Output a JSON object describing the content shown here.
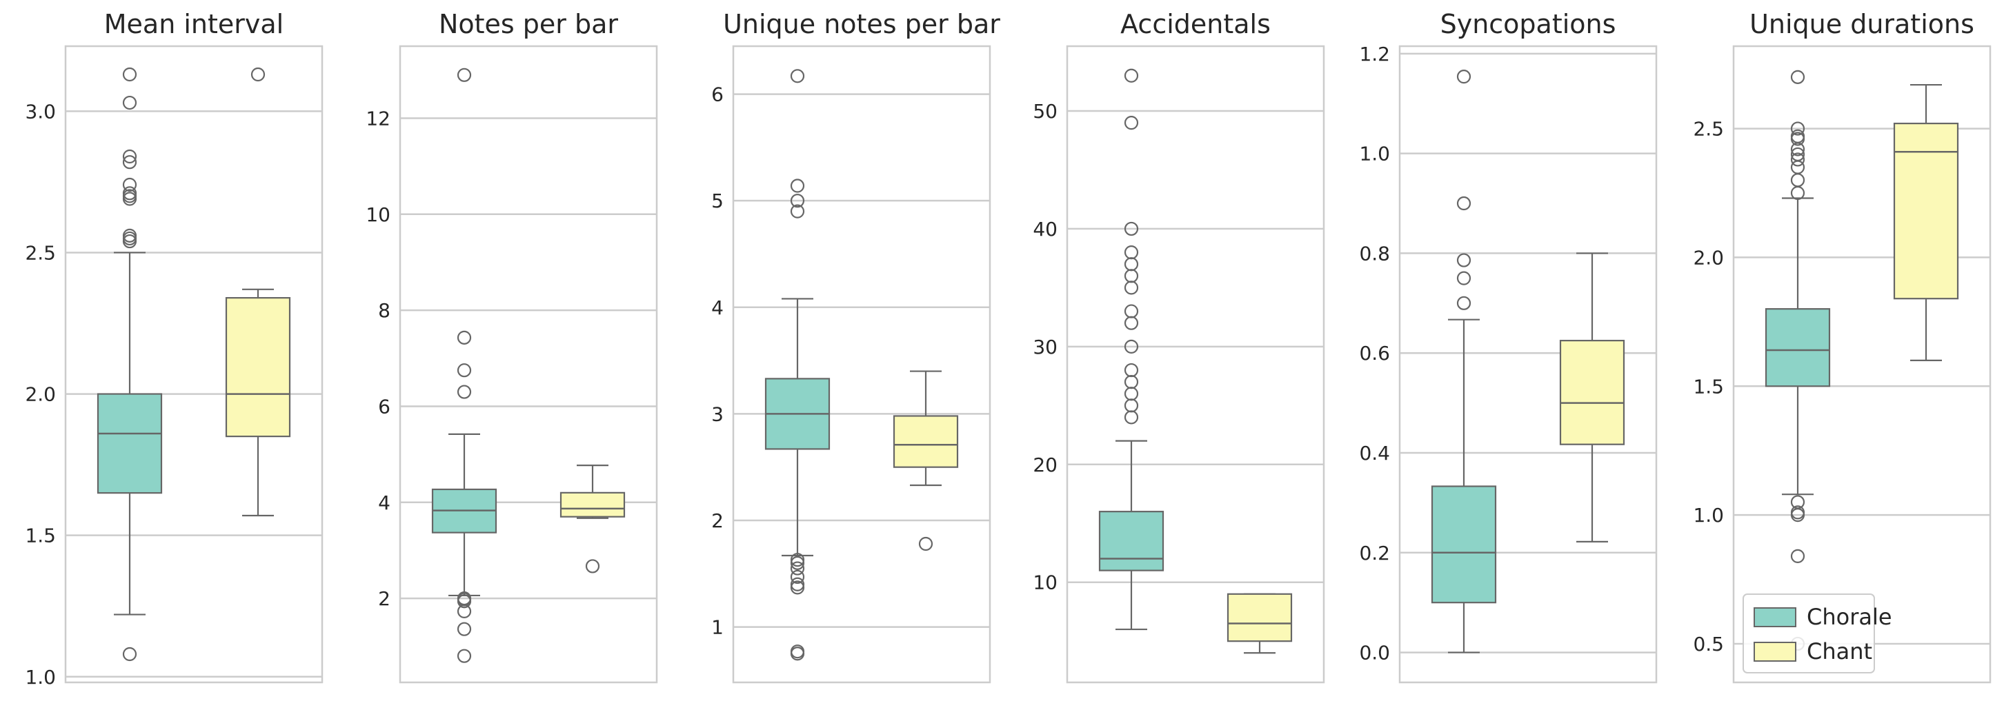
{
  "chart_data": [
    {
      "type": "box",
      "title": "Mean interval",
      "ylim": [
        0.98,
        3.23
      ],
      "yticks": [
        1.0,
        1.5,
        2.0,
        2.5,
        3.0
      ],
      "ytick_labels": [
        "1.0",
        "1.5",
        "2.0",
        "2.5",
        "3.0"
      ],
      "grid": true,
      "series": [
        {
          "name": "Chorale",
          "q1": 1.65,
          "median": 1.86,
          "q3": 2.0,
          "whisker_low": 1.22,
          "whisker_high": 2.5,
          "outliers": [
            1.08,
            2.54,
            2.55,
            2.56,
            2.69,
            2.7,
            2.71,
            2.74,
            2.82,
            2.84,
            3.03,
            3.13
          ]
        },
        {
          "name": "Chant",
          "q1": 1.85,
          "median": 2.0,
          "q3": 2.34,
          "whisker_low": 1.57,
          "whisker_high": 2.37,
          "outliers": [
            3.13
          ]
        }
      ]
    },
    {
      "type": "box",
      "title": "Notes per bar",
      "ylim": [
        0.25,
        13.5
      ],
      "yticks": [
        2,
        4,
        6,
        8,
        10,
        12
      ],
      "ytick_labels": [
        "2",
        "4",
        "6",
        "8",
        "10",
        "12"
      ],
      "grid": true,
      "series": [
        {
          "name": "Chorale",
          "q1": 3.37,
          "median": 3.83,
          "q3": 4.27,
          "whisker_low": 2.06,
          "whisker_high": 5.42,
          "outliers": [
            0.8,
            1.36,
            1.73,
            1.94,
            1.98,
            2.0,
            6.3,
            6.75,
            7.43,
            12.9
          ]
        },
        {
          "name": "Chant",
          "q1": 3.7,
          "median": 3.87,
          "q3": 4.2,
          "whisker_low": 3.67,
          "whisker_high": 4.77,
          "outliers": [
            2.67
          ]
        }
      ]
    },
    {
      "type": "box",
      "title": "Unique notes per bar",
      "ylim": [
        0.48,
        6.45
      ],
      "yticks": [
        1,
        2,
        3,
        4,
        5,
        6
      ],
      "ytick_labels": [
        "1",
        "2",
        "3",
        "4",
        "5",
        "6"
      ],
      "grid": true,
      "series": [
        {
          "name": "Chorale",
          "q1": 2.67,
          "median": 3.0,
          "q3": 3.33,
          "whisker_low": 1.67,
          "whisker_high": 4.08,
          "outliers": [
            0.75,
            0.77,
            1.37,
            1.4,
            1.47,
            1.55,
            1.6,
            1.63,
            4.9,
            5.0,
            5.14,
            6.17
          ]
        },
        {
          "name": "Chant",
          "q1": 2.5,
          "median": 2.71,
          "q3": 2.98,
          "whisker_low": 2.33,
          "whisker_high": 3.4,
          "outliers": [
            1.78
          ]
        }
      ]
    },
    {
      "type": "box",
      "title": "Accidentals",
      "ylim": [
        1.5,
        55.5
      ],
      "yticks": [
        10,
        20,
        30,
        40,
        50
      ],
      "ytick_labels": [
        "10",
        "20",
        "30",
        "40",
        "50"
      ],
      "grid": true,
      "series": [
        {
          "name": "Chorale",
          "q1": 11,
          "median": 12,
          "q3": 16,
          "whisker_low": 6,
          "whisker_high": 22,
          "outliers": [
            24,
            25,
            26,
            27,
            28,
            30,
            32,
            33,
            35,
            36,
            37,
            38,
            40,
            49,
            53
          ]
        },
        {
          "name": "Chant",
          "q1": 5,
          "median": 6.5,
          "q3": 9,
          "whisker_low": 4,
          "whisker_high": 9,
          "outliers": []
        }
      ]
    },
    {
      "type": "box",
      "title": "Syncopations",
      "ylim": [
        -0.06,
        1.215
      ],
      "yticks": [
        0.0,
        0.2,
        0.4,
        0.6,
        0.8,
        1.0,
        1.2
      ],
      "ytick_labels": [
        "0.0",
        "0.2",
        "0.4",
        "0.6",
        "0.8",
        "1.0",
        "1.2"
      ],
      "grid": true,
      "series": [
        {
          "name": "Chorale",
          "q1": 0.1,
          "median": 0.2,
          "q3": 0.333,
          "whisker_low": 0.0,
          "whisker_high": 0.667,
          "outliers": [
            0.7,
            0.75,
            0.786,
            0.9,
            1.154
          ]
        },
        {
          "name": "Chant",
          "q1": 0.417,
          "median": 0.5,
          "q3": 0.625,
          "whisker_low": 0.222,
          "whisker_high": 0.8,
          "outliers": []
        }
      ]
    },
    {
      "type": "box",
      "title": "Unique durations",
      "ylim": [
        0.35,
        2.82
      ],
      "yticks": [
        0.5,
        1.0,
        1.5,
        2.0,
        2.5
      ],
      "ytick_labels": [
        "0.5",
        "1.0",
        "1.5",
        "2.0",
        "2.5"
      ],
      "grid": true,
      "series": [
        {
          "name": "Chorale",
          "q1": 1.5,
          "median": 1.64,
          "q3": 1.8,
          "whisker_low": 1.08,
          "whisker_high": 2.23,
          "outliers": [
            0.5,
            0.84,
            1.0,
            1.01,
            1.05,
            2.25,
            2.3,
            2.35,
            2.38,
            2.4,
            2.42,
            2.46,
            2.47,
            2.5,
            2.7
          ]
        },
        {
          "name": "Chant",
          "q1": 1.84,
          "median": 2.41,
          "q3": 2.52,
          "whisker_low": 1.6,
          "whisker_high": 2.67,
          "outliers": []
        }
      ],
      "legend": {
        "position": "lower-left",
        "entries": [
          "Chorale",
          "Chant"
        ]
      }
    }
  ],
  "colors": {
    "Chorale": "#8dd3c7",
    "Chant": "#fbf9b7",
    "grid": "#cccccc",
    "lines": "#666666"
  }
}
